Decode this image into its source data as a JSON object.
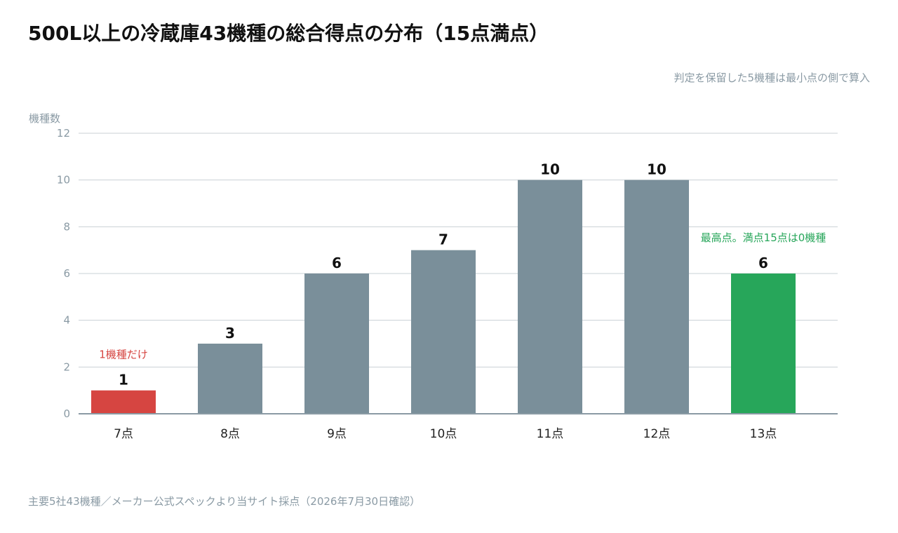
{
  "title": "500L以上の冷蔵庫43機種の総合得点の分布（15点満点）",
  "note": "判定を保留した5機種は最小点の側で算入",
  "source": "主要5社43機種／メーカー公式スペックより当サイト採点（2026年7月30日確認）",
  "colors": {
    "default_bar": "#7a8f9a",
    "low_bar": "#d64541",
    "high_bar": "#27a65a",
    "grid": "#c9d0d4",
    "axis": "#8a9aa4",
    "tick_text": "#8a9aa4",
    "value_text": "#111111"
  },
  "chart_data": {
    "type": "bar",
    "categories": [
      "7点",
      "8点",
      "9点",
      "10点",
      "11点",
      "12点",
      "13点"
    ],
    "values": [
      1,
      3,
      6,
      7,
      10,
      10,
      6
    ],
    "highlights": [
      "low",
      "default",
      "default",
      "default",
      "default",
      "default",
      "high"
    ],
    "ylabel": "機種数",
    "xlabel": "",
    "ylim": [
      0,
      12
    ],
    "yticks": [
      0,
      2,
      4,
      6,
      8,
      10,
      12
    ],
    "grid": true,
    "annotations": [
      {
        "category": "7点",
        "text": "1機種だけ",
        "color": "#d64541"
      },
      {
        "category": "13点",
        "text": "最高点。満点15点は0機種",
        "color": "#27a65a"
      }
    ]
  }
}
